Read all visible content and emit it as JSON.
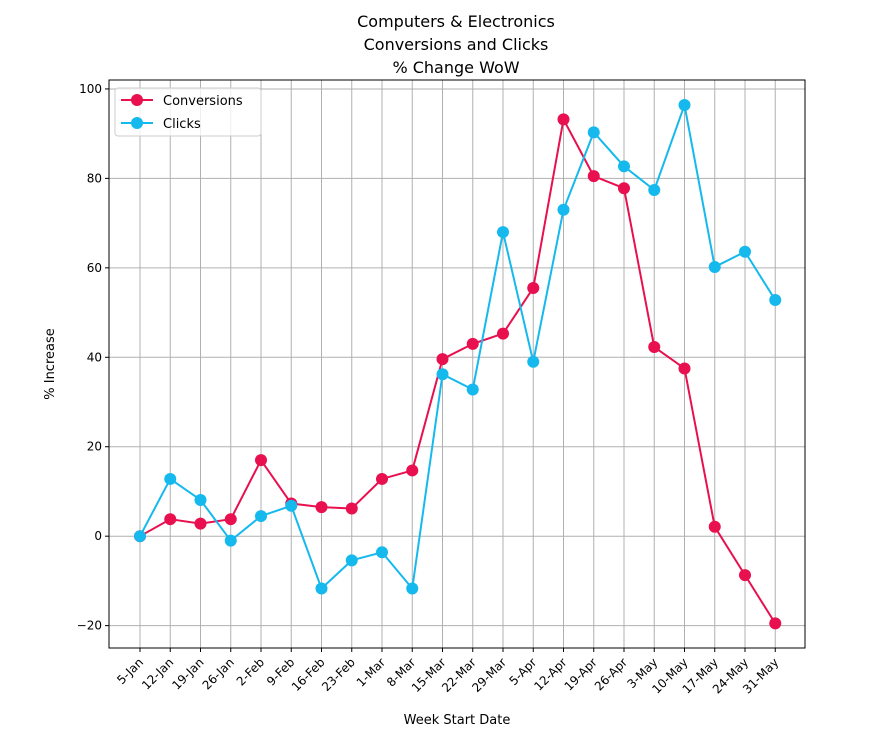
{
  "chart_data": {
    "type": "line",
    "title": [
      "Computers & Electronics",
      "Conversions and Clicks",
      "% Change WoW"
    ],
    "xlabel": "Week Start Date",
    "ylabel": "% Increase",
    "categories": [
      "5-Jan",
      "12-Jan",
      "19-Jan",
      "26-Jan",
      "2-Feb",
      "9-Feb",
      "16-Feb",
      "23-Feb",
      "1-Mar",
      "8-Mar",
      "15-Mar",
      "22-Mar",
      "29-Mar",
      "5-Apr",
      "12-Apr",
      "19-Apr",
      "26-Apr",
      "3-May",
      "10-May",
      "17-May",
      "24-May",
      "31-May"
    ],
    "ylim": [
      -25,
      102
    ],
    "yticks": [
      -20,
      0,
      20,
      40,
      60,
      80,
      100
    ],
    "ytick_labels": [
      "−20",
      "0",
      "20",
      "40",
      "60",
      "80",
      "100"
    ],
    "grid": true,
    "legend_position": "top-left",
    "series": [
      {
        "name": "Conversions",
        "color": "#e8104f",
        "values": [
          0,
          3.8,
          2.8,
          3.8,
          17,
          7.3,
          6.5,
          6.2,
          12.8,
          14.7,
          39.6,
          43,
          45.3,
          55.5,
          93.2,
          80.5,
          77.8,
          42.3,
          37.5,
          2.1,
          -8.7,
          -19.5
        ]
      },
      {
        "name": "Clicks",
        "color": "#15b9ee",
        "values": [
          0,
          12.8,
          8.1,
          -1,
          4.5,
          6.8,
          -11.7,
          -5.4,
          -3.6,
          -11.7,
          36.2,
          32.8,
          68,
          39,
          73,
          90.3,
          82.7,
          77.4,
          96.4,
          60.2,
          63.6,
          52.8
        ]
      }
    ]
  }
}
